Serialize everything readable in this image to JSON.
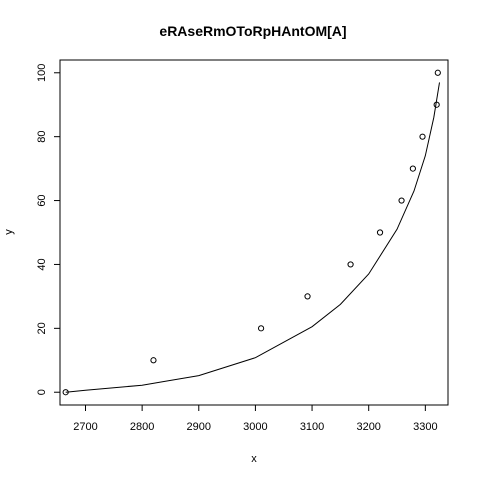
{
  "chart_data": {
    "type": "scatter",
    "title": "eRAseRmOToRpHAntOM[A]",
    "xlabel": "x",
    "ylabel": "y",
    "xlim": [
      2655,
      3340
    ],
    "ylim": [
      -4,
      104
    ],
    "xticks": [
      2700,
      2800,
      2900,
      3000,
      3100,
      3200,
      3300
    ],
    "yticks": [
      0,
      20,
      40,
      60,
      80,
      100
    ],
    "grid": false,
    "legend": "none",
    "points": [
      {
        "x": 2665,
        "y": 0
      },
      {
        "x": 2820,
        "y": 10
      },
      {
        "x": 3010,
        "y": 20
      },
      {
        "x": 3092,
        "y": 30
      },
      {
        "x": 3168,
        "y": 40
      },
      {
        "x": 3220,
        "y": 50
      },
      {
        "x": 3258,
        "y": 60
      },
      {
        "x": 3278,
        "y": 70
      },
      {
        "x": 3295,
        "y": 80
      },
      {
        "x": 3320,
        "y": 90
      },
      {
        "x": 3322,
        "y": 100
      }
    ],
    "fit_curve": [
      {
        "x": 2665,
        "y": 0
      },
      {
        "x": 2700,
        "y": 0.6
      },
      {
        "x": 2800,
        "y": 2.2
      },
      {
        "x": 2900,
        "y": 5.2
      },
      {
        "x": 3000,
        "y": 10.8
      },
      {
        "x": 3100,
        "y": 20.5
      },
      {
        "x": 3150,
        "y": 27.5
      },
      {
        "x": 3200,
        "y": 37
      },
      {
        "x": 3250,
        "y": 51
      },
      {
        "x": 3280,
        "y": 63
      },
      {
        "x": 3300,
        "y": 74
      },
      {
        "x": 3315,
        "y": 86
      },
      {
        "x": 3325,
        "y": 97
      }
    ]
  }
}
